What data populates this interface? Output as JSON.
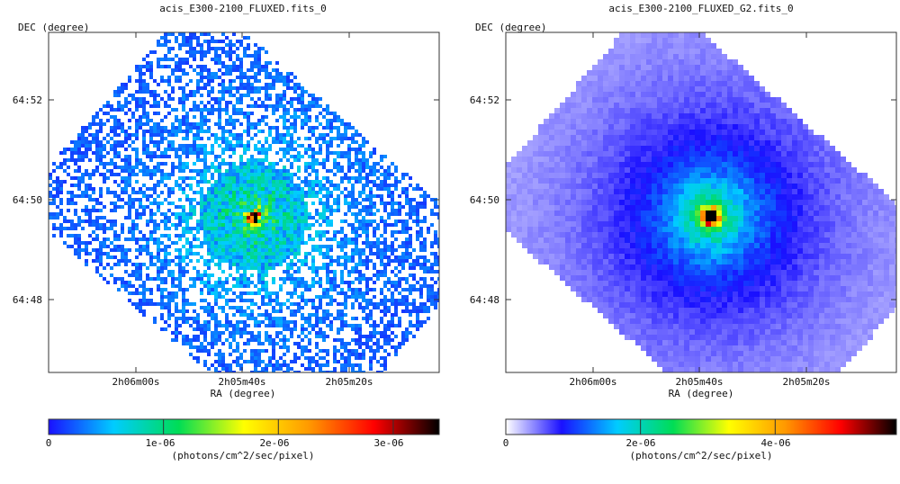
{
  "chart_data": [
    {
      "type": "heatmap",
      "title": "acis_E300-2100_FLUXED.fits_0",
      "xlabel": "RA (degree)",
      "ylabel": "DEC (degree)",
      "x_ticks": [
        "2h06m00s",
        "2h05m40s",
        "2h05m20s"
      ],
      "y_ticks": [
        "64:52",
        "64:50",
        "64:48"
      ],
      "colorbar": {
        "label": "(photons/cm^2/sec/pixel)",
        "range": [
          0,
          3.4e-06
        ],
        "ticks": [
          {
            "value": 0,
            "label": "0"
          },
          {
            "value": 1e-06,
            "label": "1e-06"
          },
          {
            "value": 2e-06,
            "label": "2e-06"
          },
          {
            "value": 3e-06,
            "label": "3e-06"
          }
        ],
        "colors": [
          "#1a10ff",
          "#00ccff",
          "#00dd55",
          "#ffff00",
          "#ff9900",
          "#ff0000",
          "#000000"
        ]
      },
      "image_style": "noisy",
      "peak_value": 3.4e-06,
      "grid": false
    },
    {
      "type": "heatmap",
      "title": "acis_E300-2100_FLUXED_G2.fits_0",
      "xlabel": "RA (degree)",
      "ylabel": "DEC (degree)",
      "x_ticks": [
        "2h06m00s",
        "2h05m40s",
        "2h05m20s"
      ],
      "y_ticks": [
        "64:52",
        "64:50",
        "64:48"
      ],
      "colorbar": {
        "label": "(photons/cm^2/sec/pixel)",
        "range": [
          0,
          5.8e-06
        ],
        "ticks": [
          {
            "value": 0,
            "label": "0"
          },
          {
            "value": 2e-06,
            "label": "2e-06"
          },
          {
            "value": 4e-06,
            "label": "4e-06"
          }
        ],
        "colors": [
          "#ffffff",
          "#1a10ff",
          "#00ccff",
          "#00dd55",
          "#ffff00",
          "#ff9900",
          "#ff0000",
          "#000000"
        ]
      },
      "image_style": "smoothed",
      "peak_value": 5.8e-06,
      "grid": false
    }
  ]
}
